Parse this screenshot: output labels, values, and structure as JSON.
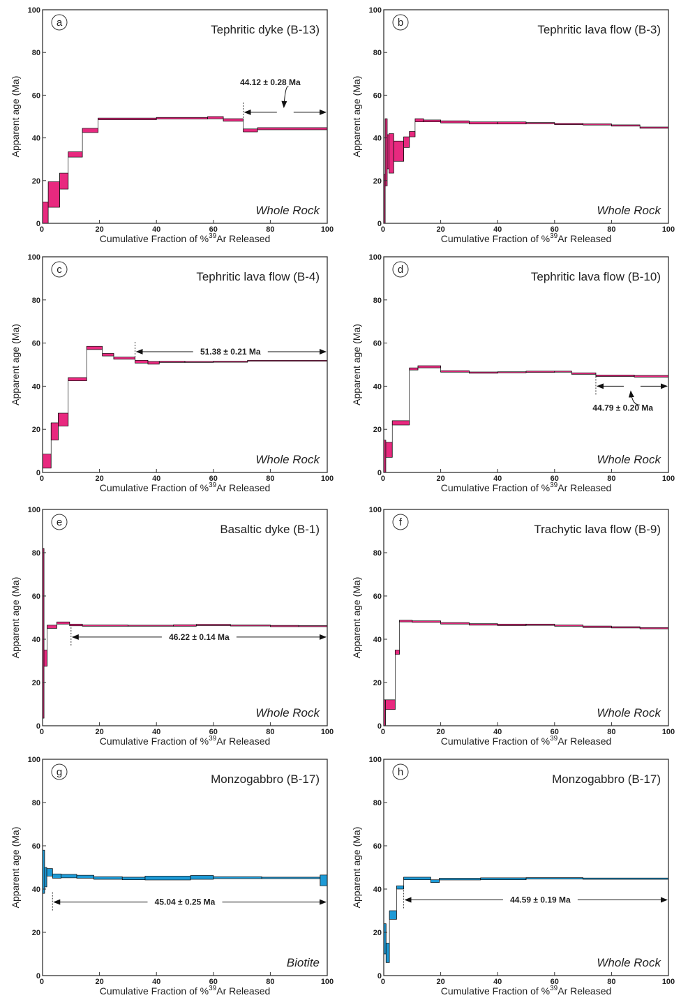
{
  "figure": {
    "xlabel": "Cumulative Fraction of %³⁹Ar Released",
    "xlabel_parts": [
      "Cumulative Fraction of %",
      "39",
      "Ar Released"
    ],
    "ylabel": "Apparent age (Ma)",
    "colors": {
      "magenta": "#e8297f",
      "blue": "#1d9ad6",
      "line": "#111111"
    }
  },
  "chart_data": [
    {
      "type": "step-spectrum",
      "letter": "a",
      "title": "Tephritic dyke (B-13)",
      "material": "Whole Rock",
      "color": "magenta",
      "xlim": [
        0,
        100
      ],
      "ylim": [
        0,
        100
      ],
      "xticks": [
        0,
        20,
        40,
        60,
        80,
        100
      ],
      "yticks": [
        0,
        20,
        40,
        60,
        80,
        100
      ],
      "plateau": {
        "label": "44.12 ± 0.28 Ma",
        "from": 70.5,
        "to": 100,
        "y": 52,
        "label_x": 80,
        "label_y": 66,
        "label_side": "above-curved"
      },
      "steps": [
        [
          0,
          2,
          0,
          10
        ],
        [
          2,
          6,
          7.5,
          19.5
        ],
        [
          6,
          9,
          16,
          23.5
        ],
        [
          9,
          14,
          31,
          33.5
        ],
        [
          14,
          19.5,
          42.5,
          44.5
        ],
        [
          19.5,
          40,
          48.5,
          49.3
        ],
        [
          40,
          58,
          48.8,
          49.6
        ],
        [
          58,
          63.5,
          48.9,
          50
        ],
        [
          63.5,
          70.5,
          47.8,
          49
        ],
        [
          70.5,
          75.5,
          42.8,
          44.2
        ],
        [
          75.5,
          100,
          43.8,
          44.8
        ]
      ]
    },
    {
      "type": "step-spectrum",
      "letter": "b",
      "title": "Tephritic lava flow (B-3)",
      "material": "Whole Rock",
      "color": "magenta",
      "xlim": [
        0,
        100
      ],
      "ylim": [
        0,
        100
      ],
      "xticks": [
        0,
        20,
        40,
        60,
        80,
        100
      ],
      "yticks": [
        0,
        20,
        40,
        60,
        80,
        100
      ],
      "plateau": null,
      "steps": [
        [
          0,
          0.5,
          0,
          23
        ],
        [
          0.5,
          1.2,
          17.5,
          49
        ],
        [
          1.2,
          1.8,
          25.5,
          41.5
        ],
        [
          1.8,
          3.5,
          23.5,
          42
        ],
        [
          3.5,
          7,
          29,
          38.5
        ],
        [
          7,
          9,
          35.5,
          40.5
        ],
        [
          9,
          11,
          40.5,
          43
        ],
        [
          11,
          14,
          47.5,
          49
        ],
        [
          14,
          20,
          47.5,
          48.4
        ],
        [
          20,
          30,
          47,
          48
        ],
        [
          30,
          40,
          46.5,
          47.5
        ],
        [
          40,
          50,
          46.5,
          47.5
        ],
        [
          50,
          60,
          46.6,
          47.2
        ],
        [
          60,
          70,
          46.2,
          46.8
        ],
        [
          70,
          80,
          46,
          46.6
        ],
        [
          80,
          90,
          45.5,
          46.1
        ],
        [
          90,
          100,
          44.5,
          45.1
        ]
      ]
    },
    {
      "type": "step-spectrum",
      "letter": "c",
      "title": "Tephritic lava flow (B-4)",
      "material": "Whole Rock",
      "color": "magenta",
      "xlim": [
        0,
        100
      ],
      "ylim": [
        0,
        100
      ],
      "xticks": [
        0,
        20,
        40,
        60,
        80,
        100
      ],
      "yticks": [
        0,
        20,
        40,
        60,
        80,
        100
      ],
      "plateau": {
        "label": "51.38 ± 0.21 Ma",
        "from": 32.5,
        "to": 100,
        "y": 56,
        "label_x": 66,
        "label_y": 56,
        "label_side": "inline"
      },
      "steps": [
        [
          0,
          3,
          2,
          8.5
        ],
        [
          3,
          5.5,
          15,
          23
        ],
        [
          5.5,
          9,
          21.5,
          27.5
        ],
        [
          9,
          15.5,
          42.5,
          44
        ],
        [
          15.5,
          21,
          57,
          58.5
        ],
        [
          21,
          25,
          54,
          55.2
        ],
        [
          25,
          32.5,
          52.5,
          53.5
        ],
        [
          32.5,
          37,
          50.7,
          52
        ],
        [
          37,
          41,
          50.2,
          51.5
        ],
        [
          41,
          50,
          51,
          51.6
        ],
        [
          50,
          60,
          51,
          51.5
        ],
        [
          60,
          72,
          51.1,
          51.6
        ],
        [
          72,
          100,
          51.6,
          52
        ]
      ]
    },
    {
      "type": "step-spectrum",
      "letter": "d",
      "title": "Tephritic lava flow (B-10)",
      "material": "Whole Rock",
      "color": "magenta",
      "xlim": [
        0,
        100
      ],
      "ylim": [
        0,
        100
      ],
      "xticks": [
        0,
        20,
        40,
        60,
        80,
        100
      ],
      "yticks": [
        0,
        20,
        40,
        60,
        80,
        100
      ],
      "plateau": {
        "label": "44.79 ± 0.20 Ma",
        "from": 74.5,
        "to": 100,
        "y": 40,
        "label_x": 84,
        "label_y": 30,
        "label_side": "below-curved"
      },
      "steps": [
        [
          0,
          0.7,
          0,
          15
        ],
        [
          0.7,
          3,
          7,
          14
        ],
        [
          3,
          9,
          22,
          24
        ],
        [
          9,
          12,
          47.5,
          48.5
        ],
        [
          12,
          20,
          48.5,
          49.5
        ],
        [
          20,
          30,
          46.5,
          47.2
        ],
        [
          30,
          40,
          46,
          46.6
        ],
        [
          40,
          50,
          46.2,
          46.7
        ],
        [
          50,
          60,
          46.4,
          47
        ],
        [
          60,
          66,
          46.5,
          47
        ],
        [
          66,
          74.5,
          45.5,
          46.2
        ],
        [
          74.5,
          88,
          44.5,
          45.2
        ],
        [
          88,
          100,
          44.2,
          45
        ]
      ]
    },
    {
      "type": "step-spectrum",
      "letter": "e",
      "title": "Basaltic dyke (B-1)",
      "material": "Whole Rock",
      "color": "magenta",
      "xlim": [
        0,
        100
      ],
      "ylim": [
        0,
        100
      ],
      "xticks": [
        0,
        20,
        40,
        60,
        80,
        100
      ],
      "yticks": [
        0,
        20,
        40,
        60,
        80,
        100
      ],
      "plateau": {
        "label": "46.22 ± 0.14 Ma",
        "from": 10,
        "to": 100,
        "y": 41,
        "label_x": 55,
        "label_y": 41,
        "label_side": "inline"
      },
      "steps": [
        [
          0,
          0.5,
          3.5,
          82
        ],
        [
          0.5,
          1.6,
          27.5,
          35
        ],
        [
          1.6,
          5,
          45,
          46.5
        ],
        [
          5,
          9.5,
          47,
          48
        ],
        [
          9.5,
          14,
          46.2,
          47
        ],
        [
          14,
          30,
          46,
          46.6
        ],
        [
          30,
          46,
          46,
          46.5
        ],
        [
          46,
          54,
          46,
          46.7
        ],
        [
          54,
          66,
          46.3,
          46.9
        ],
        [
          66,
          80,
          46.1,
          46.6
        ],
        [
          80,
          90,
          45.8,
          46.4
        ],
        [
          90,
          100,
          45.8,
          46.3
        ]
      ]
    },
    {
      "type": "step-spectrum",
      "letter": "f",
      "title": "Trachytic lava flow (B-9)",
      "material": "Whole Rock",
      "color": "magenta",
      "xlim": [
        0,
        100
      ],
      "ylim": [
        0,
        100
      ],
      "xticks": [
        0,
        20,
        40,
        60,
        80,
        100
      ],
      "yticks": [
        0,
        20,
        40,
        60,
        80,
        100
      ],
      "plateau": null,
      "steps": [
        [
          0,
          0.6,
          0,
          12
        ],
        [
          0.6,
          4,
          7.5,
          12
        ],
        [
          4,
          5.5,
          33,
          35
        ],
        [
          5.5,
          10,
          48,
          48.8
        ],
        [
          10,
          20,
          47.8,
          48.5
        ],
        [
          20,
          30,
          47,
          47.7
        ],
        [
          30,
          40,
          46.5,
          47.2
        ],
        [
          40,
          50,
          46.3,
          47
        ],
        [
          50,
          60,
          46.4,
          47
        ],
        [
          60,
          70,
          46,
          46.6
        ],
        [
          70,
          80,
          45.4,
          46.1
        ],
        [
          80,
          90,
          45.2,
          45.8
        ],
        [
          90,
          100,
          44.8,
          45.4
        ]
      ]
    },
    {
      "type": "step-spectrum",
      "letter": "g",
      "title": "Monzogabbro (B-17)",
      "material": "Biotite",
      "color": "blue",
      "xlim": [
        0,
        100
      ],
      "ylim": [
        0,
        100
      ],
      "xticks": [
        0,
        20,
        40,
        60,
        80,
        100
      ],
      "yticks": [
        0,
        20,
        40,
        60,
        80,
        100
      ],
      "plateau": {
        "label": "45.04 ± 0.25 Ma",
        "from": 3.5,
        "to": 100,
        "y": 34,
        "label_x": 50,
        "label_y": 34,
        "label_side": "inline"
      },
      "steps": [
        [
          0,
          0.7,
          38,
          58
        ],
        [
          0.7,
          1.5,
          41,
          50
        ],
        [
          1.5,
          3.5,
          46,
          49.5
        ],
        [
          3.5,
          6.5,
          45,
          47
        ],
        [
          6.5,
          12,
          45.2,
          46.8
        ],
        [
          12,
          18,
          45,
          46.4
        ],
        [
          18,
          28,
          44.5,
          45.7
        ],
        [
          28,
          36,
          44.3,
          45.5
        ],
        [
          36,
          52,
          44.2,
          46
        ],
        [
          52,
          60,
          44.5,
          46.3
        ],
        [
          60,
          77,
          44.8,
          45.7
        ],
        [
          77,
          97.5,
          44.8,
          45.5
        ],
        [
          97.5,
          100,
          41.5,
          46.5
        ]
      ]
    },
    {
      "type": "step-spectrum",
      "letter": "h",
      "title": "Monzogabbro (B-17)",
      "material": "Whole Rock",
      "color": "blue",
      "xlim": [
        0,
        100
      ],
      "ylim": [
        0,
        100
      ],
      "xticks": [
        0,
        20,
        40,
        60,
        80,
        100
      ],
      "yticks": [
        0,
        20,
        40,
        60,
        80,
        100
      ],
      "plateau": {
        "label": "44.59 ± 0.19 Ma",
        "from": 7,
        "to": 100,
        "y": 35,
        "label_x": 55,
        "label_y": 35,
        "label_side": "inline"
      },
      "steps": [
        [
          0,
          0.8,
          10,
          24
        ],
        [
          0.8,
          2,
          6,
          15
        ],
        [
          2,
          4.5,
          26,
          30
        ],
        [
          4.5,
          7,
          40,
          41.5
        ],
        [
          7,
          16.5,
          44.3,
          45.5
        ],
        [
          16.5,
          19.5,
          43,
          44.3
        ],
        [
          19.5,
          34,
          44.2,
          45
        ],
        [
          34,
          50,
          44.3,
          45.2
        ],
        [
          50,
          70,
          44.6,
          45.3
        ],
        [
          70,
          100,
          44.5,
          45.1
        ]
      ]
    }
  ]
}
